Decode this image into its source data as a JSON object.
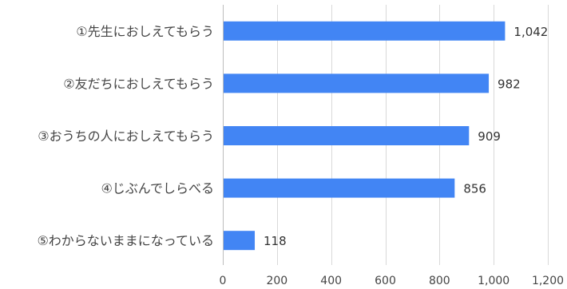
{
  "chart_data": {
    "type": "bar",
    "orientation": "horizontal",
    "categories": [
      "①先生におしえてもらう",
      "②友だちにおしえてもらう",
      "③おうちの人におしえてもらう",
      "④じぶんでしらべる",
      "⑤わからないままになっている"
    ],
    "values": [
      1042,
      982,
      909,
      856,
      118
    ],
    "value_labels": [
      "1,042",
      "982",
      "909",
      "856",
      "118"
    ],
    "xlim": [
      0,
      1200
    ],
    "x_ticks": [
      "0",
      "200",
      "400",
      "600",
      "800",
      "1,000",
      "1,200"
    ],
    "grid": true,
    "legend": "none",
    "colors": {
      "bar": "#4285f4"
    }
  }
}
